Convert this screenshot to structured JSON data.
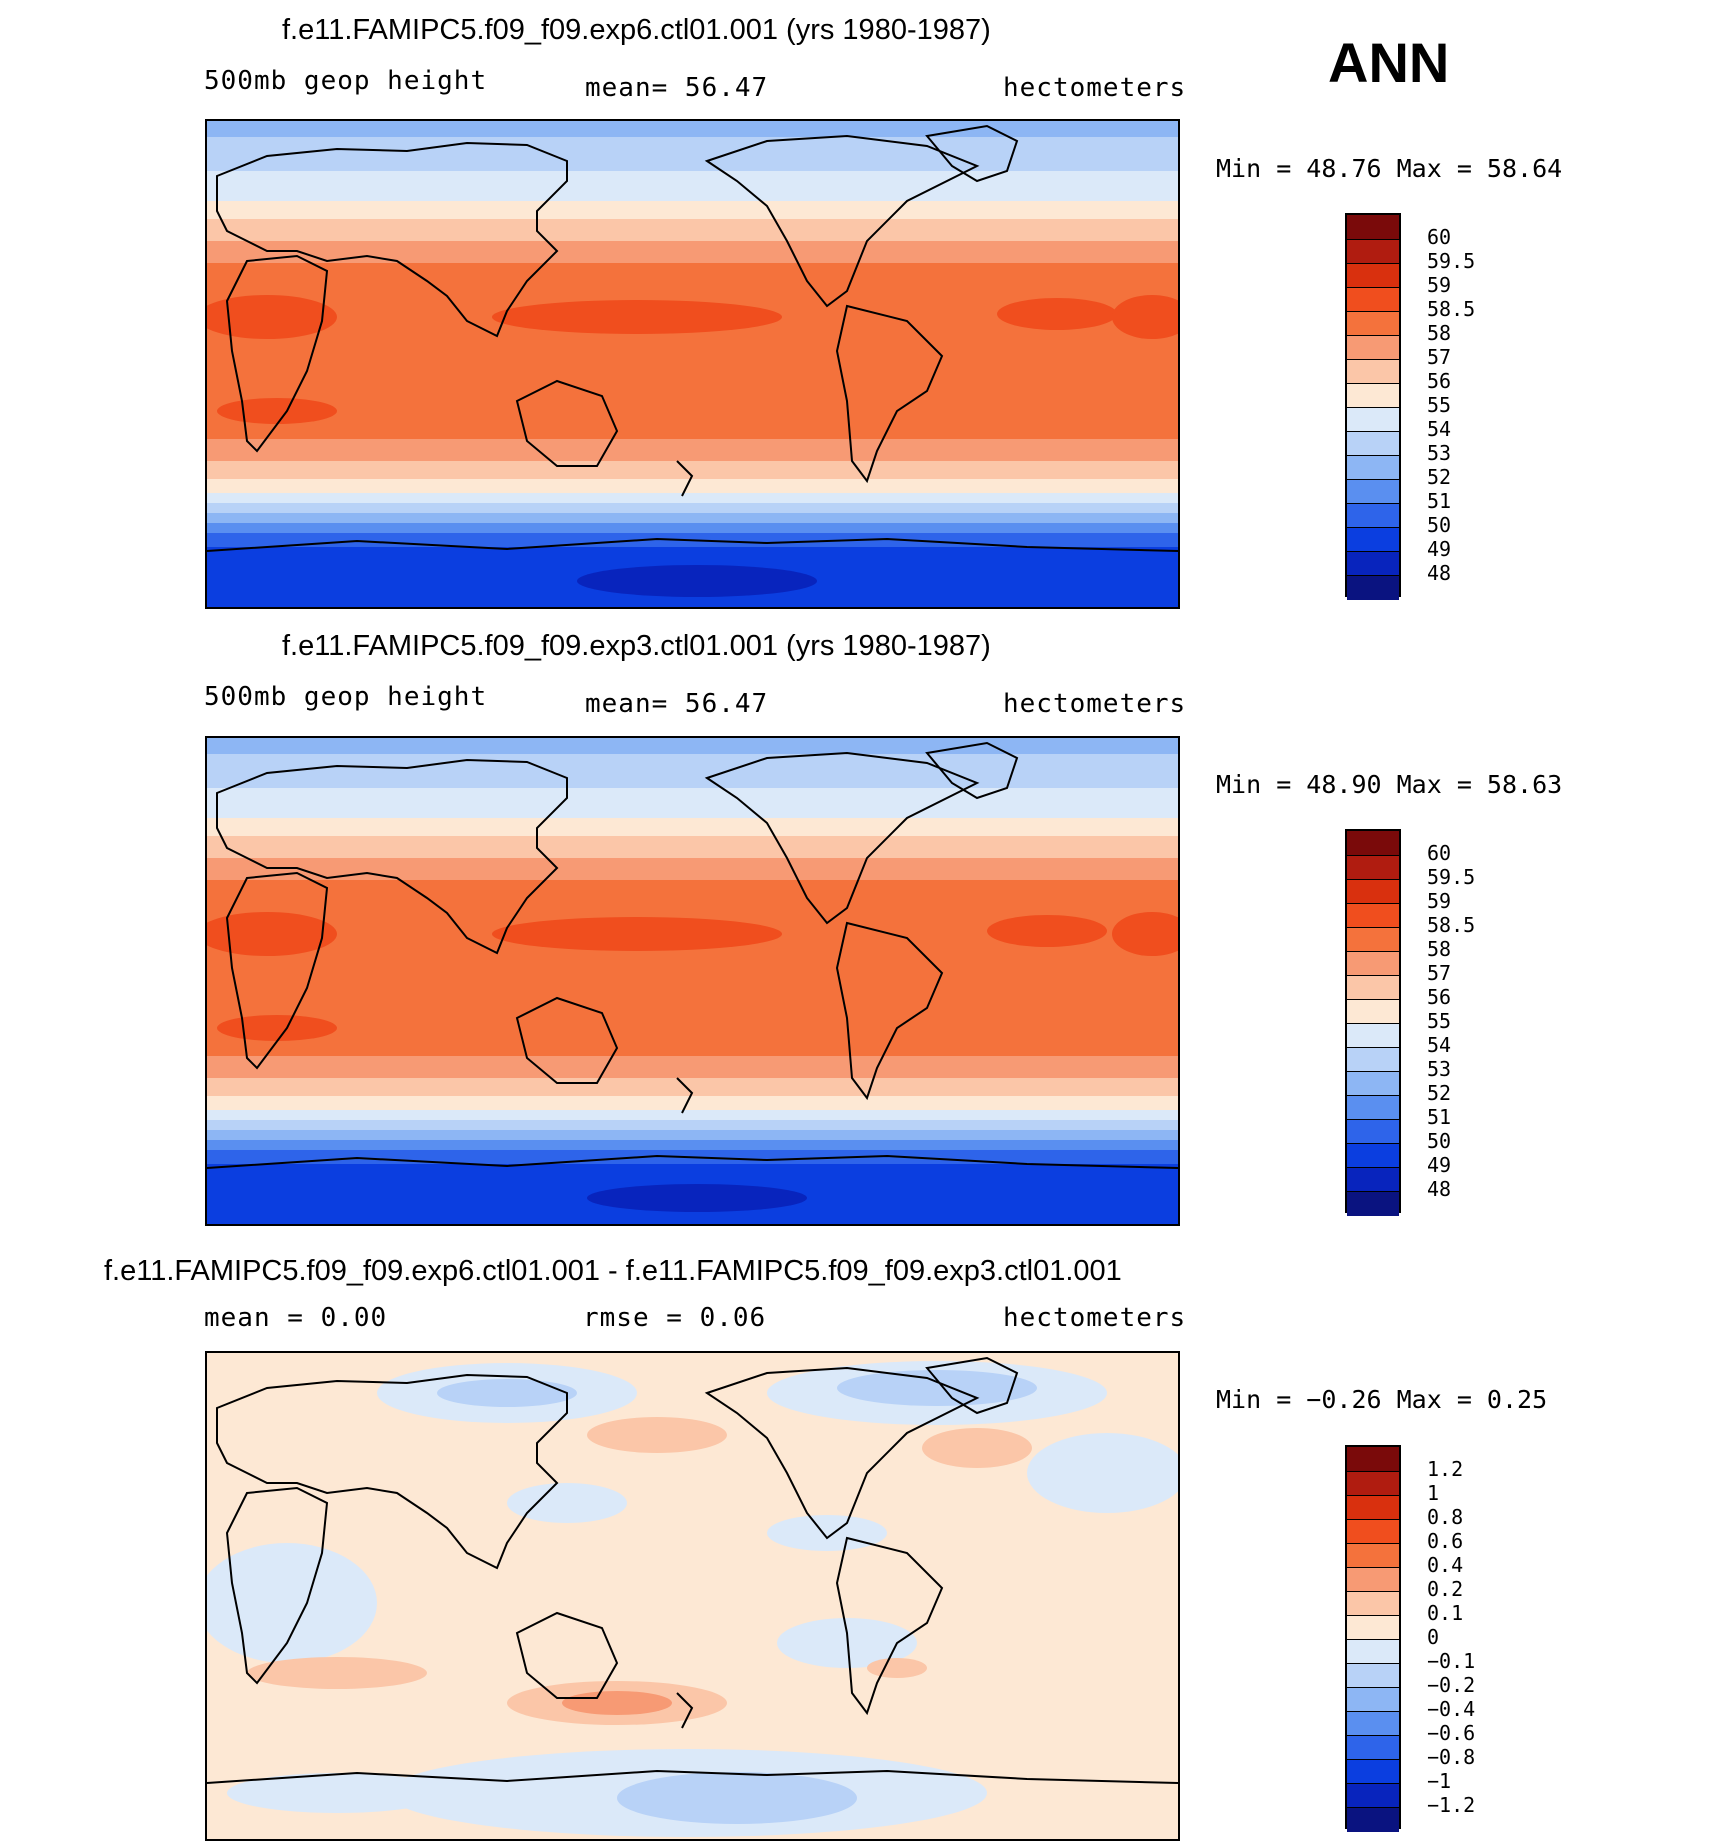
{
  "season_label": "ANN",
  "panels": [
    {
      "title": "f.e11.FAMIPC5.f09_f09.exp6.ctl01.001 (yrs 1980-1987)",
      "left_label": "500mb  geop  height",
      "mid_label": "mean=   56.47",
      "right_label": "hectometers",
      "minmax": "Min =   48.76  Max =   58.64"
    },
    {
      "title": "f.e11.FAMIPC5.f09_f09.exp3.ctl01.001 (yrs 1980-1987)",
      "left_label": "500mb  geop  height",
      "mid_label": "mean=   56.47",
      "right_label": "hectometers",
      "minmax": "Min =   48.90  Max =   58.63"
    },
    {
      "title": "f.e11.FAMIPC5.f09_f09.exp6.ctl01.001 - f.e11.FAMIPC5.f09_f09.exp3.ctl01.001",
      "left_label": "mean =    0.00",
      "mid_label": "rmse =    0.06",
      "right_label": "hectometers",
      "minmax": "Min =  −0.26  Max =    0.25"
    }
  ],
  "colorbar_abs": {
    "labels": [
      "60",
      "59.5",
      "59",
      "58.5",
      "58",
      "57",
      "56",
      "55",
      "54",
      "53",
      "52",
      "51",
      "50",
      "49",
      "48"
    ],
    "colors": [
      "#7a0a0a",
      "#b01c10",
      "#d9300e",
      "#f04e1e",
      "#f4723c",
      "#f79a74",
      "#fbc6a8",
      "#fde8d4",
      "#dbe9f9",
      "#b8d2f7",
      "#8db6f4",
      "#5a8ff0",
      "#2e64ea",
      "#0b3ee0",
      "#0824bd",
      "#0a1380"
    ]
  },
  "colorbar_diff": {
    "labels": [
      "1.2",
      "1",
      "0.8",
      "0.6",
      "0.4",
      "0.2",
      "0.1",
      "0",
      "−0.1",
      "−0.2",
      "−0.4",
      "−0.6",
      "−0.8",
      "−1",
      "−1.2"
    ],
    "colors": [
      "#7a0a0a",
      "#b01c10",
      "#d9300e",
      "#f04e1e",
      "#f4723c",
      "#f79a74",
      "#fbc6a8",
      "#fde8d4",
      "#dbe9f9",
      "#b8d2f7",
      "#8db6f4",
      "#5a8ff0",
      "#2e64ea",
      "#0b3ee0",
      "#0824bd",
      "#0a1380"
    ]
  },
  "chart_data": [
    {
      "type": "heatmap",
      "title": "f.e11.FAMIPC5.f09_f09.exp6.ctl01.001 (yrs 1980-1987)",
      "variable": "500mb geop height",
      "units": "hectometers",
      "mean": 56.47,
      "min": 48.76,
      "max": 58.64,
      "levels": [
        48,
        49,
        50,
        51,
        52,
        53,
        54,
        55,
        56,
        57,
        58,
        58.5,
        59,
        59.5,
        60
      ],
      "zonal_profile": {
        "lat": [
          90,
          75,
          60,
          45,
          30,
          15,
          0,
          -15,
          -30,
          -45,
          -60,
          -75,
          -90
        ],
        "value": [
          51.5,
          52.5,
          53.5,
          55.2,
          57.5,
          58.4,
          58.2,
          58.3,
          57.2,
          55.3,
          51.5,
          50.0,
          49.5
        ]
      }
    },
    {
      "type": "heatmap",
      "title": "f.e11.FAMIPC5.f09_f09.exp3.ctl01.001 (yrs 1980-1987)",
      "variable": "500mb geop height",
      "units": "hectometers",
      "mean": 56.47,
      "min": 48.9,
      "max": 58.63,
      "levels": [
        48,
        49,
        50,
        51,
        52,
        53,
        54,
        55,
        56,
        57,
        58,
        58.5,
        59,
        59.5,
        60
      ],
      "zonal_profile": {
        "lat": [
          90,
          75,
          60,
          45,
          30,
          15,
          0,
          -15,
          -30,
          -45,
          -60,
          -75,
          -90
        ],
        "value": [
          51.5,
          52.5,
          53.5,
          55.2,
          57.5,
          58.4,
          58.2,
          58.3,
          57.2,
          55.3,
          51.5,
          50.0,
          49.5
        ]
      }
    },
    {
      "type": "heatmap",
      "title": "f.e11.FAMIPC5.f09_f09.exp6.ctl01.001 - f.e11.FAMIPC5.f09_f09.exp3.ctl01.001",
      "units": "hectometers",
      "mean": 0.0,
      "rmse": 0.06,
      "min": -0.26,
      "max": 0.25,
      "levels": [
        -1.2,
        -1,
        -0.8,
        -0.6,
        -0.4,
        -0.2,
        -0.1,
        0,
        0.1,
        0.2,
        0.4,
        0.6,
        0.8,
        1,
        1.2
      ]
    }
  ]
}
